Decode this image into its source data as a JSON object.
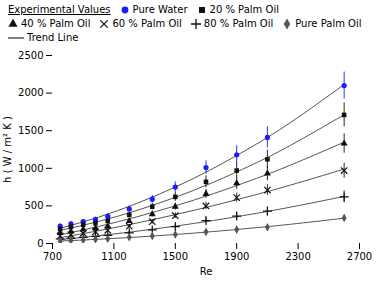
{
  "chart_data": {
    "type": "scatter",
    "xlabel": "Re",
    "ylabel": "h ( W / m² K )",
    "xlim": [
      700,
      2700
    ],
    "ylim": [
      0,
      2500
    ],
    "xticks": [
      700,
      1100,
      1500,
      1900,
      2300,
      2700
    ],
    "yticks": [
      0,
      500,
      1000,
      1500,
      2000,
      2500
    ],
    "grid": false,
    "legend": "top",
    "legend_title": "Experimental Values",
    "series": [
      {
        "name": "Pure Water",
        "color": "#1a1aff",
        "marker": "circle",
        "x": [
          750,
          820,
          900,
          980,
          1060,
          1200,
          1350,
          1500,
          1700,
          1900,
          2100,
          2600
        ],
        "values": [
          230,
          260,
          290,
          320,
          360,
          460,
          590,
          750,
          1010,
          1180,
          1410,
          2100
        ],
        "yerr": [
          30,
          30,
          30,
          30,
          35,
          40,
          50,
          70,
          90,
          120,
          140,
          180
        ]
      },
      {
        "name": "20 % Palm Oil",
        "color": "#111111",
        "marker": "square",
        "x": [
          750,
          820,
          900,
          980,
          1060,
          1200,
          1350,
          1500,
          1700,
          1900,
          2100,
          2600
        ],
        "values": [
          190,
          220,
          250,
          270,
          300,
          380,
          490,
          620,
          820,
          970,
          1120,
          1710
        ],
        "yerr": [
          25,
          25,
          25,
          28,
          30,
          35,
          45,
          60,
          80,
          100,
          120,
          160
        ]
      },
      {
        "name": "40 % Palm Oil",
        "color": "#111111",
        "marker": "triangle",
        "x": [
          750,
          820,
          900,
          980,
          1060,
          1200,
          1350,
          1500,
          1700,
          1900,
          2100,
          2600
        ],
        "values": [
          140,
          160,
          185,
          205,
          230,
          300,
          390,
          490,
          660,
          800,
          930,
          1330
        ],
        "yerr": [
          20,
          20,
          20,
          22,
          25,
          28,
          35,
          45,
          60,
          80,
          95,
          130
        ]
      },
      {
        "name": "60 % Palm Oil",
        "color": "#111111",
        "marker": "x",
        "x": [
          750,
          820,
          900,
          980,
          1060,
          1200,
          1350,
          1500,
          1700,
          1900,
          2100,
          2600
        ],
        "values": [
          100,
          115,
          135,
          155,
          175,
          230,
          290,
          370,
          500,
          610,
          710,
          970
        ],
        "yerr": [
          15,
          15,
          18,
          20,
          22,
          25,
          30,
          38,
          50,
          60,
          72,
          100
        ]
      },
      {
        "name": "80 % Palm Oil",
        "color": "#111111",
        "marker": "plus",
        "x": [
          750,
          820,
          900,
          980,
          1060,
          1200,
          1350,
          1500,
          1700,
          1900,
          2100,
          2600
        ],
        "values": [
          60,
          70,
          82,
          95,
          108,
          142,
          180,
          225,
          305,
          365,
          430,
          620
        ],
        "yerr": [
          10,
          10,
          12,
          13,
          14,
          18,
          22,
          28,
          35,
          45,
          55,
          80
        ]
      },
      {
        "name": "Pure Palm Oil",
        "color": "#555555",
        "marker": "diamond",
        "x": [
          750,
          820,
          900,
          980,
          1060,
          1200,
          1350,
          1500,
          1700,
          1900,
          2100,
          2600
        ],
        "values": [
          30,
          38,
          46,
          55,
          64,
          82,
          100,
          120,
          155,
          185,
          215,
          340
        ],
        "yerr": [
          5,
          6,
          7,
          8,
          9,
          10,
          12,
          14,
          18,
          22,
          26,
          40
        ]
      },
      {
        "name": "Trend Line",
        "type": "line",
        "color": "#555555",
        "line_style": "solid",
        "x": [
          750,
          1000,
          1250,
          1500,
          1750,
          2000,
          2250,
          2600
        ],
        "values": [
          201.3,
          350.2,
          533.3,
          750.6,
          1002.2,
          1287.9,
          1607.8,
          2113.2
        ]
      },
      {
        "name": "Trend Line",
        "type": "line",
        "color": "#555555",
        "line_style": "solid",
        "x": [
          750,
          1000,
          1250,
          1500,
          1750,
          2000,
          2250,
          2600
        ],
        "values": [
          174.3,
          292.9,
          439.5,
          613.9,
          816.2,
          1046.4,
          1304.4,
          1712.5
        ]
      },
      {
        "name": "Trend Line",
        "type": "line",
        "color": "#555555",
        "line_style": "solid",
        "x": [
          750,
          1000,
          1250,
          1500,
          1750,
          2000,
          2250,
          2600
        ],
        "values": [
          114.9,
          226.3,
          354.9,
          500.8,
          664.0,
          844.3,
          1042.0,
          1347.6
        ]
      },
      {
        "name": "Trend Line",
        "type": "line",
        "color": "#555555",
        "line_style": "solid",
        "x": [
          750,
          1000,
          1250,
          1500,
          1750,
          2000,
          2250,
          2600
        ],
        "values": [
          77.7,
          170.0,
          271.9,
          383.5,
          504.8,
          635.8,
          776.4,
          989.5
        ]
      },
      {
        "name": "Trend Line",
        "type": "line",
        "color": "#555555",
        "line_style": "solid",
        "x": [
          750,
          1000,
          1250,
          1500,
          1750,
          2000,
          2250,
          2600
        ],
        "values": [
          51.1,
          102.9,
          162.8,
          230.7,
          306.8,
          391.0,
          483.3,
          626.0
        ]
      },
      {
        "name": "Trend Line",
        "type": "line",
        "color": "#555555",
        "line_style": "solid",
        "x": [
          750,
          1000,
          1250,
          1500,
          1750,
          2000,
          2250,
          2600
        ],
        "values": [
          32.9,
          56.4,
          85.3,
          119.7,
          159.5,
          204.9,
          255.7,
          336.0
        ]
      }
    ]
  }
}
